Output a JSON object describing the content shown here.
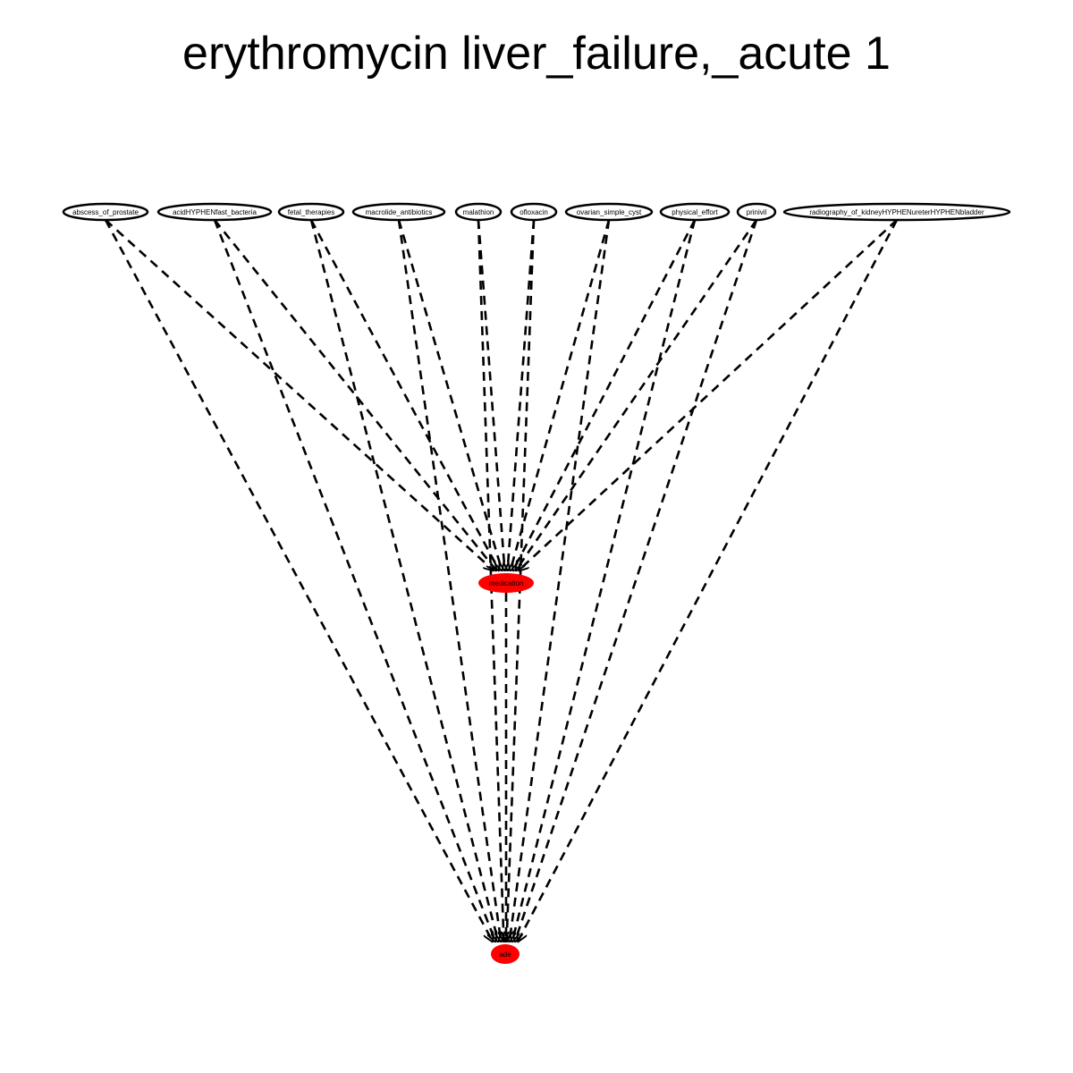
{
  "title": "erythromycin liver_failure,_acute 1",
  "colors": {
    "edge": "#000000",
    "node_border": "#000000",
    "highlight_fill": "#ff0000",
    "plain_fill": "#ffffff"
  },
  "edge_style": "dashed",
  "nodes": {
    "top": [
      "abscess_of_prostate",
      "acidHYPHENfast_bacteria",
      "fetal_therapies",
      "macrolide_antibiotics",
      "malathion",
      "ofloxacin",
      "ovarian_simple_cyst",
      "physical_effort",
      "prinivil",
      "radiography_of_kidneyHYPHENureterHYPHENbladder"
    ],
    "middle": "medication",
    "bottom": "ade"
  }
}
